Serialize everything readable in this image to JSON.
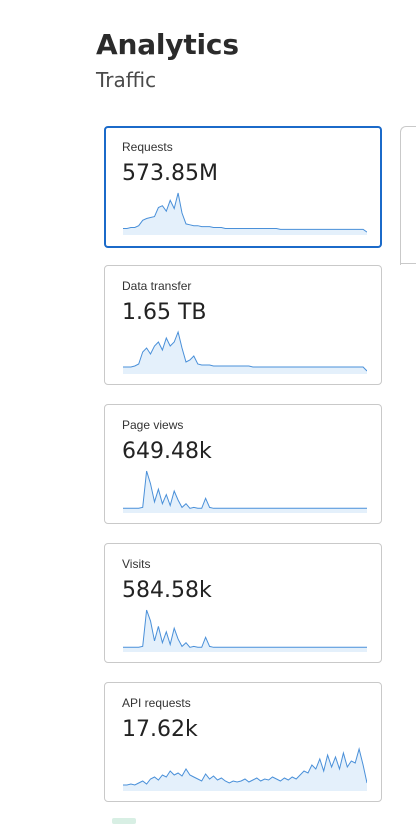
{
  "header": {
    "title": "Analytics",
    "subtitle": "Traffic"
  },
  "colors": {
    "accent": "#1b6ac9",
    "line": "#4a90d9",
    "fill": "#e4f0fb",
    "border": "#c9c9c9"
  },
  "metrics": [
    {
      "label": "Requests",
      "value": "573.85M",
      "selected": true,
      "series": [
        5,
        5,
        6,
        6,
        8,
        14,
        16,
        17,
        18,
        28,
        30,
        24,
        36,
        27,
        44,
        22,
        10,
        9,
        8,
        8,
        7,
        7,
        7,
        6,
        6,
        6,
        5,
        5,
        5,
        5,
        5,
        5,
        5,
        5,
        5,
        5,
        5,
        5,
        5,
        5,
        4,
        4,
        4,
        4,
        4,
        4,
        4,
        4,
        4,
        4,
        4,
        4,
        4,
        4,
        4,
        4,
        4,
        4,
        4,
        4,
        4,
        4,
        1
      ]
    },
    {
      "label": "Data transfer",
      "value": "1.65 TB",
      "selected": false,
      "series": [
        5,
        5,
        5,
        6,
        8,
        20,
        24,
        18,
        26,
        30,
        22,
        34,
        26,
        30,
        40,
        24,
        10,
        12,
        16,
        8,
        7,
        7,
        7,
        6,
        6,
        6,
        6,
        6,
        6,
        6,
        6,
        6,
        6,
        5,
        5,
        5,
        5,
        5,
        5,
        5,
        5,
        5,
        5,
        5,
        5,
        5,
        5,
        5,
        5,
        5,
        5,
        5,
        5,
        5,
        5,
        5,
        5,
        5,
        5,
        5,
        5,
        5,
        1
      ]
    },
    {
      "label": "Page views",
      "value": "649.48k",
      "selected": false,
      "series": [
        3,
        3,
        3,
        3,
        3,
        4,
        44,
        30,
        10,
        24,
        8,
        18,
        6,
        22,
        12,
        4,
        8,
        3,
        4,
        3,
        3,
        14,
        4,
        3,
        3,
        3,
        3,
        3,
        3,
        3,
        3,
        3,
        3,
        3,
        3,
        3,
        3,
        3,
        3,
        3,
        3,
        3,
        3,
        3,
        3,
        3,
        3,
        3,
        3,
        3,
        3,
        3,
        3,
        3,
        3,
        3,
        3,
        3,
        3,
        3,
        3,
        3,
        3
      ]
    },
    {
      "label": "Visits",
      "value": "584.58k",
      "selected": false,
      "series": [
        3,
        3,
        3,
        3,
        3,
        4,
        44,
        32,
        10,
        26,
        8,
        20,
        6,
        24,
        12,
        4,
        8,
        3,
        4,
        3,
        3,
        14,
        4,
        3,
        3,
        3,
        3,
        3,
        3,
        3,
        3,
        3,
        3,
        3,
        3,
        3,
        3,
        3,
        3,
        3,
        3,
        3,
        3,
        3,
        3,
        3,
        3,
        3,
        3,
        3,
        3,
        3,
        3,
        3,
        3,
        3,
        3,
        3,
        3,
        3,
        3,
        3,
        3
      ]
    },
    {
      "label": "API requests",
      "value": "17.62k",
      "selected": false,
      "series": [
        4,
        4,
        5,
        4,
        6,
        8,
        5,
        10,
        12,
        9,
        14,
        12,
        18,
        14,
        16,
        13,
        20,
        14,
        12,
        10,
        8,
        15,
        10,
        13,
        9,
        11,
        8,
        6,
        8,
        7,
        8,
        10,
        7,
        9,
        11,
        8,
        10,
        9,
        12,
        10,
        8,
        11,
        9,
        12,
        10,
        14,
        18,
        16,
        24,
        20,
        30,
        18,
        34,
        22,
        32,
        20,
        36,
        22,
        28,
        26,
        40,
        24,
        6
      ]
    }
  ]
}
